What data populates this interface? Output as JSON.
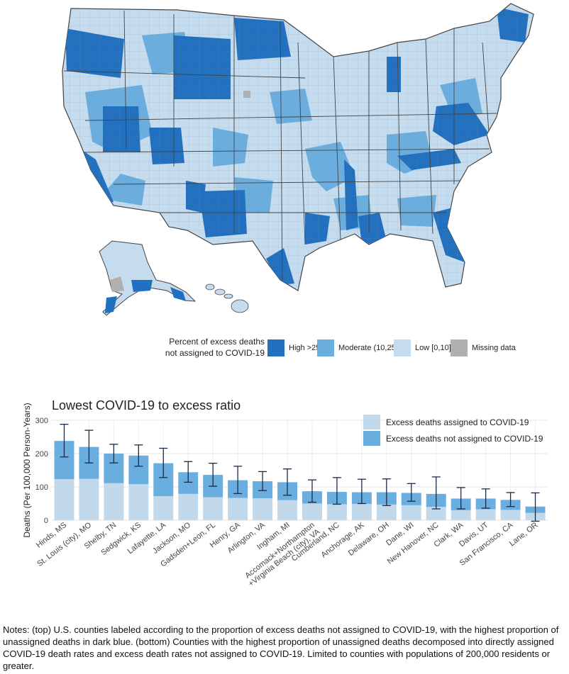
{
  "map": {
    "legend_title_line1": "Percent of excess deaths",
    "legend_title_line2": "not assigned to COVID-19",
    "legend": [
      {
        "label": "High >25",
        "color": "#2171c0"
      },
      {
        "label": "Moderate (10,25]",
        "color": "#6aaee0"
      },
      {
        "label": "Low [0,10]",
        "color": "#c5dbee"
      },
      {
        "label": "Missing data",
        "color": "#b0b0b0"
      }
    ],
    "border_color": "#444444"
  },
  "chart_data": {
    "type": "bar",
    "title": "Lowest COVID-19 to excess ratio",
    "ylabel": "Deaths (Per 100,000 Person-Years)",
    "xlabel": "",
    "ylim": [
      0,
      300
    ],
    "yticks": [
      0,
      100,
      200,
      300
    ],
    "grid": true,
    "legend_position": "top-right",
    "categories": [
      "Hinds, MS",
      "St. Louis (city), MO",
      "Shelby, TN",
      "Sedgwick, KS",
      "Lafayette, LA",
      "Jackson, MO",
      "Gadsden+Leon, FL",
      "Henry, GA",
      "Arlington, VA",
      "Ingham, MI",
      "Accomack+Northampton +Virginia Beach (city), VA",
      "Cumberland, NC",
      "Anchorage, AK",
      "Delaware, OH",
      "Dane, WI",
      "New Hanover, NC",
      "Clark, WA",
      "Davis, UT",
      "San Francisco, CA",
      "Lane, OR"
    ],
    "series": [
      {
        "name": "Excess deaths assigned to COVID-19",
        "color": "#c2d9ec",
        "values": [
          123,
          124,
          111,
          108,
          72,
          79,
          69,
          67,
          66,
          60,
          50,
          48,
          49,
          47,
          45,
          40,
          30,
          33,
          31,
          22
        ]
      },
      {
        "name": "Excess deaths not assigned to COVID-19",
        "color": "#6aaee0",
        "values": [
          115,
          96,
          89,
          86,
          99,
          65,
          67,
          53,
          51,
          54,
          37,
          37,
          35,
          37,
          37,
          39,
          35,
          32,
          30,
          19
        ]
      }
    ],
    "error_bars": {
      "lower": [
        190,
        172,
        172,
        162,
        128,
        114,
        102,
        80,
        89,
        75,
        54,
        48,
        50,
        44,
        57,
        34,
        34,
        36,
        41,
        -3
      ],
      "upper": [
        288,
        270,
        228,
        226,
        216,
        176,
        171,
        162,
        146,
        154,
        121,
        128,
        123,
        124,
        110,
        130,
        98,
        94,
        83,
        82
      ]
    }
  },
  "notes": "Notes: (top) U.S. counties labeled according to the proportion of excess deaths not assigned to COVID-19, with the highest proportion of unassigned deaths in dark blue. (bottom) Counties with the highest proportion of unassigned deaths decomposed into directly assigned COVID-19 death rates and excess death rates not assigned to COVID-19. Limited to counties with populations of 200,000 residents or greater."
}
